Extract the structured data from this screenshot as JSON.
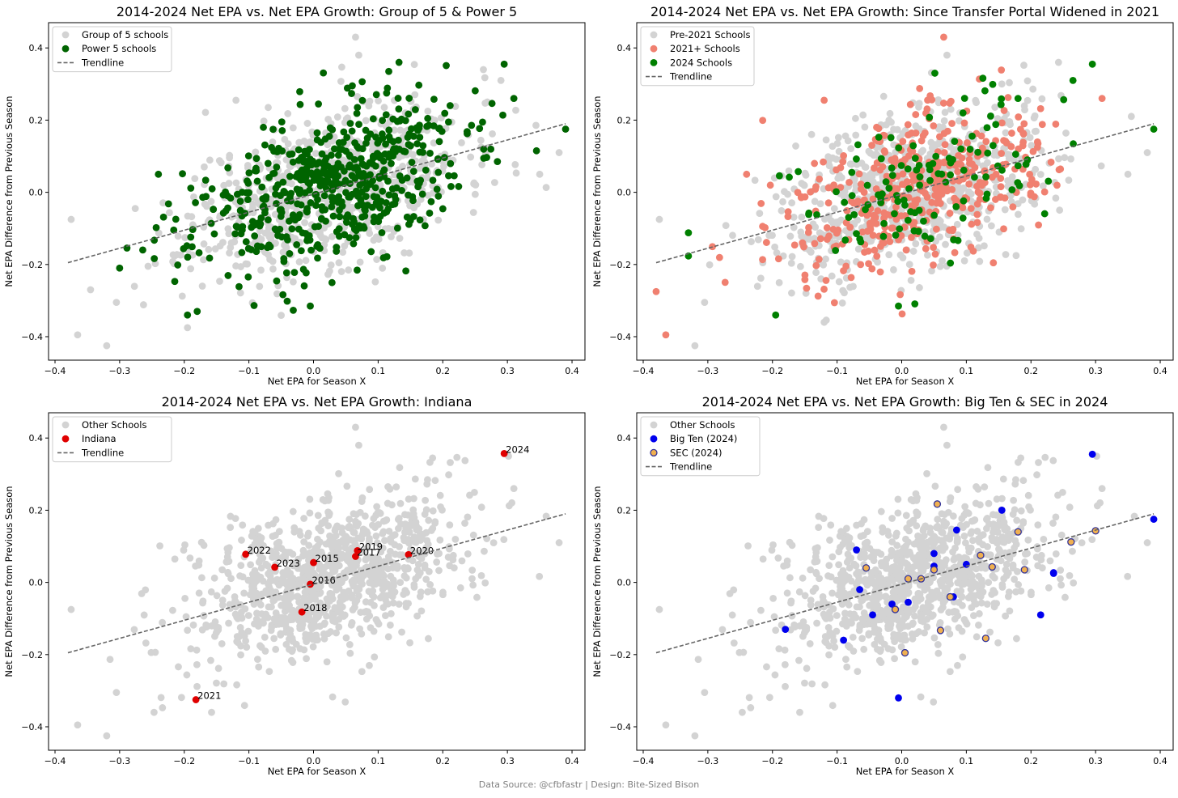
{
  "chart_data": [
    {
      "type": "scatter",
      "title": "2014-2024 Net EPA vs. Net EPA Growth: Group of 5 & Power 5",
      "xlabel": "Net EPA for Season X",
      "ylabel": "Net EPA Difference from Previous Season",
      "xlim": [
        -0.41,
        0.42
      ],
      "ylim": [
        -0.465,
        0.47
      ],
      "xticks": [
        "-0.4",
        "-0.3",
        "-0.2",
        "-0.1",
        "0.0",
        "0.1",
        "0.2",
        "0.3",
        "0.4"
      ],
      "yticks": [
        "-0.4",
        "-0.2",
        "0.0",
        "0.2",
        "0.4"
      ],
      "legend": [
        {
          "label": "Group of 5 schools",
          "kind": "dot",
          "color": "#d3d3d3"
        },
        {
          "label": "Power 5 schools",
          "kind": "dot",
          "color": "#006400"
        },
        {
          "label": "Trendline",
          "kind": "line",
          "color": "#666666"
        }
      ],
      "trendline": {
        "x": [
          -0.38,
          0.39
        ],
        "y": [
          -0.195,
          0.19
        ]
      },
      "series": [
        {
          "name": "Group of 5 schools",
          "color": "#d3d3d3",
          "cloud": {
            "n": 680,
            "seed": 11
          },
          "points": [
            [
              -0.375,
              -0.075
            ],
            [
              -0.365,
              -0.395
            ],
            [
              -0.345,
              -0.27
            ],
            [
              -0.32,
              -0.425
            ],
            [
              -0.305,
              -0.305
            ],
            [
              -0.195,
              -0.375
            ],
            [
              0.065,
              0.43
            ],
            [
              0.07,
              0.38
            ],
            [
              0.29,
              0.31
            ],
            [
              0.38,
              0.11
            ],
            [
              0.35,
              0.05
            ],
            [
              -0.12,
              0.255
            ]
          ]
        },
        {
          "name": "Power 5 schools",
          "color": "#006400",
          "cloud": {
            "n": 560,
            "seed": 23
          },
          "points": [
            [
              0.295,
              0.355
            ],
            [
              0.39,
              0.175
            ],
            [
              -0.195,
              -0.34
            ],
            [
              -0.18,
              -0.33
            ],
            [
              -0.3,
              -0.21
            ],
            [
              -0.24,
              0.05
            ],
            [
              0.345,
              0.115
            ],
            [
              -0.005,
              -0.315
            ],
            [
              0.31,
              0.26
            ],
            [
              0.06,
              0.295
            ]
          ]
        }
      ]
    },
    {
      "type": "scatter",
      "title": "2014-2024 Net EPA vs. Net EPA Growth: Since Transfer Portal Widened in 2021",
      "xlabel": "Net EPA for Season X",
      "ylabel": "Net EPA Difference from Previous Season",
      "xlim": [
        -0.41,
        0.42
      ],
      "ylim": [
        -0.465,
        0.47
      ],
      "xticks": [
        "-0.4",
        "-0.3",
        "-0.2",
        "-0.1",
        "0.0",
        "0.1",
        "0.2",
        "0.3",
        "0.4"
      ],
      "yticks": [
        "-0.4",
        "-0.2",
        "0.0",
        "0.2",
        "0.4"
      ],
      "legend": [
        {
          "label": "Pre-2021 Schools",
          "kind": "dot",
          "color": "#d3d3d3"
        },
        {
          "label": "2021+ Schools",
          "kind": "dot",
          "color": "#f08070"
        },
        {
          "label": "2024 Schools",
          "kind": "dot",
          "color": "#008000"
        },
        {
          "label": "Trendline",
          "kind": "line",
          "color": "#666666"
        }
      ],
      "trendline": {
        "x": [
          -0.38,
          0.39
        ],
        "y": [
          -0.195,
          0.19
        ]
      },
      "series": [
        {
          "name": "Pre-2021 Schools",
          "color": "#d3d3d3",
          "cloud": {
            "n": 760,
            "seed": 31
          },
          "points": [
            [
              -0.375,
              -0.075
            ],
            [
              -0.32,
              -0.425
            ],
            [
              -0.305,
              -0.305
            ],
            [
              0.35,
              0.05
            ],
            [
              0.38,
              0.11
            ],
            [
              0.07,
              0.38
            ]
          ]
        },
        {
          "name": "2021+ Schools",
          "color": "#f08070",
          "cloud": {
            "n": 420,
            "seed": 43
          },
          "points": [
            [
              -0.38,
              -0.275
            ],
            [
              -0.365,
              -0.395
            ],
            [
              0.065,
              0.43
            ],
            [
              0.31,
              0.26
            ],
            [
              -0.24,
              0.05
            ],
            [
              -0.12,
              0.255
            ]
          ]
        },
        {
          "name": "2024 Schools",
          "color": "#008000",
          "cloud": {
            "n": 120,
            "seed": 57
          },
          "points": [
            [
              0.295,
              0.355
            ],
            [
              0.39,
              0.175
            ],
            [
              0.265,
              0.31
            ],
            [
              -0.195,
              -0.34
            ],
            [
              -0.005,
              -0.315
            ],
            [
              0.18,
              0.26
            ]
          ]
        }
      ]
    },
    {
      "type": "scatter",
      "title": "2014-2024 Net EPA vs. Net EPA Growth: Indiana",
      "xlabel": "Net EPA for Season X",
      "ylabel": "Net EPA Difference from Previous Season",
      "xlim": [
        -0.41,
        0.42
      ],
      "ylim": [
        -0.465,
        0.47
      ],
      "xticks": [
        "-0.4",
        "-0.3",
        "-0.2",
        "-0.1",
        "0.0",
        "0.1",
        "0.2",
        "0.3",
        "0.4"
      ],
      "yticks": [
        "-0.4",
        "-0.2",
        "0.0",
        "0.2",
        "0.4"
      ],
      "legend": [
        {
          "label": "Other Schools",
          "kind": "dot",
          "color": "#d3d3d3"
        },
        {
          "label": "Indiana",
          "kind": "dot",
          "color": "#e00000"
        },
        {
          "label": "Trendline",
          "kind": "line",
          "color": "#666666"
        }
      ],
      "trendline": {
        "x": [
          -0.38,
          0.39
        ],
        "y": [
          -0.195,
          0.19
        ]
      },
      "series": [
        {
          "name": "Other Schools",
          "color": "#d3d3d3",
          "cloud": {
            "n": 1000,
            "seed": 71
          },
          "points": [
            [
              -0.375,
              -0.075
            ],
            [
              -0.365,
              -0.395
            ],
            [
              -0.32,
              -0.425
            ],
            [
              -0.305,
              -0.305
            ],
            [
              0.065,
              0.43
            ],
            [
              0.07,
              0.38
            ],
            [
              0.38,
              0.11
            ],
            [
              0.31,
              0.26
            ]
          ]
        },
        {
          "name": "Indiana",
          "color": "#e00000",
          "labeled": true,
          "points": [
            {
              "x": 0.295,
              "y": 0.357,
              "label": "2024"
            },
            {
              "x": -0.105,
              "y": 0.078,
              "label": "2022"
            },
            {
              "x": -0.06,
              "y": 0.042,
              "label": "2023"
            },
            {
              "x": 0.0,
              "y": 0.055,
              "label": "2015"
            },
            {
              "x": -0.005,
              "y": -0.005,
              "label": "2016"
            },
            {
              "x": -0.018,
              "y": -0.082,
              "label": "2018"
            },
            {
              "x": 0.068,
              "y": 0.088,
              "label": "2019"
            },
            {
              "x": 0.065,
              "y": 0.072,
              "label": "2017"
            },
            {
              "x": 0.147,
              "y": 0.077,
              "label": "2020"
            },
            {
              "x": -0.182,
              "y": -0.325,
              "label": "2021"
            }
          ]
        }
      ]
    },
    {
      "type": "scatter",
      "title": "2014-2024 Net EPA vs. Net EPA Growth: Big Ten & SEC in 2024",
      "xlabel": "Net EPA for Season X",
      "ylabel": "Net EPA Difference from Previous Season",
      "xlim": [
        -0.41,
        0.42
      ],
      "ylim": [
        -0.465,
        0.47
      ],
      "xticks": [
        "-0.4",
        "-0.3",
        "-0.2",
        "-0.1",
        "0.0",
        "0.1",
        "0.2",
        "0.3",
        "0.4"
      ],
      "yticks": [
        "-0.4",
        "-0.2",
        "0.0",
        "0.2",
        "0.4"
      ],
      "legend": [
        {
          "label": "Other Schools",
          "kind": "dot",
          "color": "#d3d3d3"
        },
        {
          "label": "Big Ten (2024)",
          "kind": "dot",
          "color": "#0000ee"
        },
        {
          "label": "SEC (2024)",
          "kind": "ring",
          "color": "#f0b050",
          "edge": "#333399"
        },
        {
          "label": "Trendline",
          "kind": "line",
          "color": "#666666"
        }
      ],
      "trendline": {
        "x": [
          -0.38,
          0.39
        ],
        "y": [
          -0.195,
          0.19
        ]
      },
      "series": [
        {
          "name": "Other Schools",
          "color": "#d3d3d3",
          "cloud": {
            "n": 1000,
            "seed": 71
          },
          "points": [
            [
              -0.375,
              -0.075
            ],
            [
              -0.365,
              -0.395
            ],
            [
              -0.32,
              -0.425
            ],
            [
              -0.305,
              -0.305
            ],
            [
              0.065,
              0.43
            ],
            [
              0.07,
              0.38
            ],
            [
              0.38,
              0.11
            ],
            [
              0.31,
              0.26
            ]
          ]
        },
        {
          "name": "Big Ten (2024)",
          "color": "#0000ee",
          "points": [
            [
              0.295,
              0.355
            ],
            [
              0.39,
              0.175
            ],
            [
              0.155,
              0.2
            ],
            [
              0.235,
              0.027
            ],
            [
              0.235,
              0.025
            ],
            [
              0.085,
              0.145
            ],
            [
              0.1,
              0.05
            ],
            [
              0.05,
              0.08
            ],
            [
              0.05,
              0.045
            ],
            [
              0.08,
              -0.04
            ],
            [
              0.01,
              -0.055
            ],
            [
              -0.015,
              -0.06
            ],
            [
              -0.045,
              -0.09
            ],
            [
              -0.065,
              -0.02
            ],
            [
              -0.07,
              0.09
            ],
            [
              -0.09,
              -0.16
            ],
            [
              -0.18,
              -0.13
            ],
            [
              -0.005,
              -0.32
            ],
            [
              0.215,
              -0.09
            ]
          ]
        },
        {
          "name": "SEC (2024)",
          "color": "#f0b050",
          "edge": "#333399",
          "points": [
            [
              0.055,
              0.217
            ],
            [
              0.18,
              0.14
            ],
            [
              0.3,
              0.143
            ],
            [
              0.262,
              0.112
            ],
            [
              0.122,
              0.075
            ],
            [
              0.14,
              0.043
            ],
            [
              0.19,
              0.035
            ],
            [
              0.05,
              0.035
            ],
            [
              0.03,
              0.01
            ],
            [
              0.01,
              0.01
            ],
            [
              -0.055,
              0.04
            ],
            [
              0.075,
              -0.04
            ],
            [
              -0.01,
              -0.075
            ],
            [
              0.06,
              -0.133
            ],
            [
              0.005,
              -0.195
            ],
            [
              0.13,
              -0.155
            ]
          ]
        }
      ]
    }
  ],
  "footer": "Data Source: @cfbfastr | Design: Bite-Sized Bison"
}
